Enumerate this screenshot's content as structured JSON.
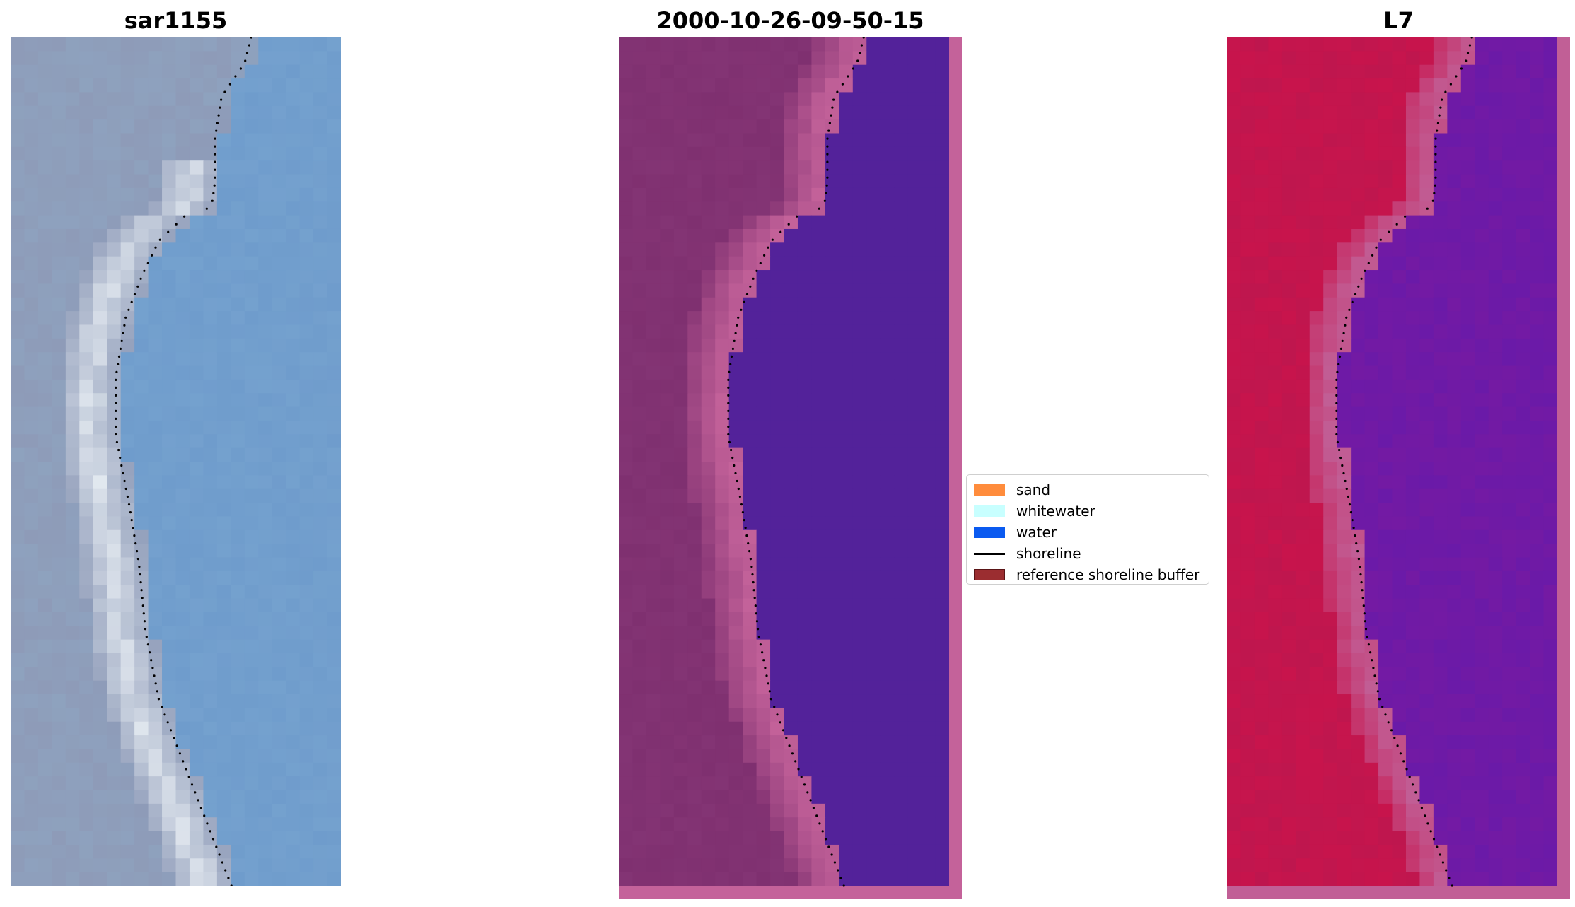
{
  "panels": [
    {
      "id": "rgb",
      "title": "sar1155"
    },
    {
      "id": "classified",
      "title": "2000-10-26-09-50-15"
    },
    {
      "id": "index",
      "title": "L7"
    }
  ],
  "legend": {
    "items": [
      {
        "label": "sand",
        "color": "#ff8c3c",
        "kind": "patch"
      },
      {
        "label": "whitewater",
        "color": "#c8ffff",
        "kind": "patch"
      },
      {
        "label": "water",
        "color": "#0a5af0",
        "kind": "patch"
      },
      {
        "label": "shoreline",
        "color": "#000000",
        "kind": "line"
      },
      {
        "label": "reference shoreline buffer",
        "color": "#9b2d30",
        "kind": "patch"
      }
    ]
  },
  "colors": {
    "rgb_sand": "#e6ecf2",
    "rgb_land": "#8e9bb8",
    "rgb_water": "#6f9ccc",
    "classified_land": "#7f3070",
    "classified_buffer": "#c4629a",
    "classified_water": "#53229a",
    "index_land": "#c8144c",
    "index_buffer": "#c15f96",
    "index_water": "#6a1aa8",
    "shoreline": "#000000"
  }
}
